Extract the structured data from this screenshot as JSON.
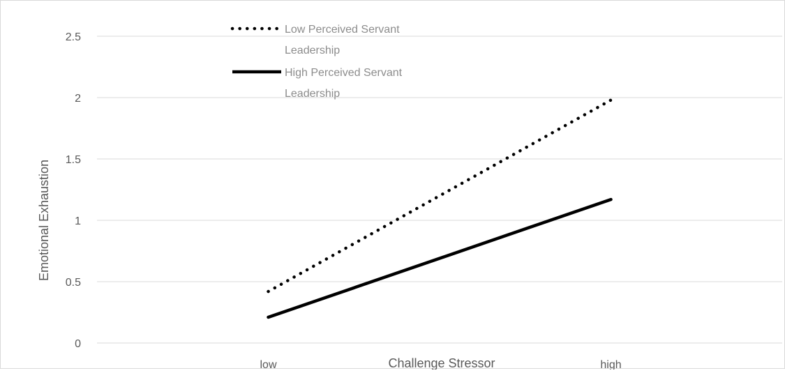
{
  "chart_data": {
    "type": "line",
    "title": "",
    "xlabel": "Challenge Stressor",
    "ylabel": "Emotional Exhaustion",
    "categories": [
      "low",
      "high"
    ],
    "ylim": [
      0,
      2.5
    ],
    "yticks": [
      "0",
      "0.5",
      "1",
      "1.5",
      "2",
      "2.5"
    ],
    "grid": true,
    "legend_position": "top-left",
    "series": [
      {
        "name": "Low Perceived Servant Leadership",
        "name_lines": [
          "Low Perceived Servant",
          "Leadership"
        ],
        "values": [
          0.42,
          1.98
        ],
        "style": "dotted",
        "color": "#000000"
      },
      {
        "name": "High Perceived Servant Leadership",
        "name_lines": [
          "High Perceived Servant",
          "Leadership"
        ],
        "values": [
          0.21,
          1.17
        ],
        "style": "solid",
        "color": "#000000"
      }
    ]
  }
}
